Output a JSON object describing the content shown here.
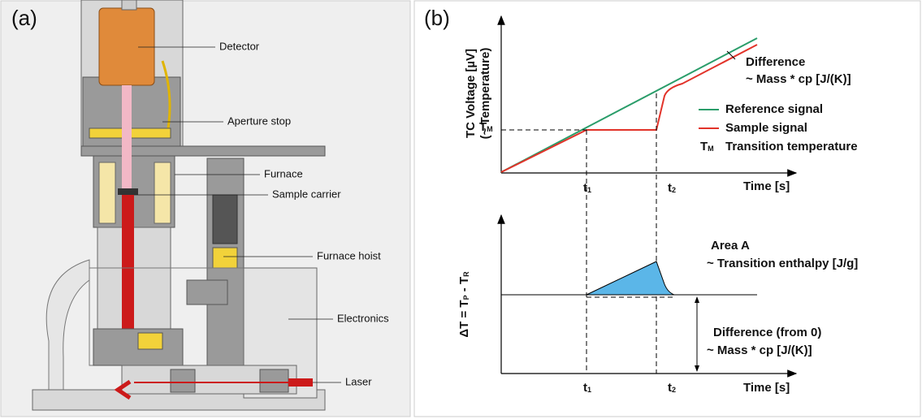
{
  "panel_a": {
    "label": "(a)",
    "callouts": [
      "Detector",
      "Aperture stop",
      "Furnace",
      "Sample carrier",
      "Furnace hoist",
      "Electronics",
      "Laser"
    ]
  },
  "panel_b": {
    "label": "(b)",
    "top_plot": {
      "y_axis_label": [
        "TC Voltage [µV]",
        "(~ Temperature)"
      ],
      "tm_label": {
        "base": "T",
        "sub": "M"
      },
      "difference": [
        "Difference",
        "~ Mass * cp [J/(K)]"
      ],
      "legend": [
        {
          "label": "Reference signal"
        },
        {
          "label": "Sample signal"
        },
        {
          "symbol": {
            "base": "T",
            "sub": "M"
          },
          "label": "Transition temperature"
        }
      ],
      "t1": {
        "base": "t",
        "sub": "1"
      },
      "t2": {
        "base": "t",
        "sub": "2"
      },
      "x_axis_label": "Time [s]"
    },
    "bottom_plot": {
      "y_axis_label": [
        {
          "text": "ΔT = T"
        },
        {
          "sub": "P"
        },
        {
          "text": " - T"
        },
        {
          "sub": "R"
        }
      ],
      "area": [
        "Area A",
        "~ Transition enthalpy [J/g]"
      ],
      "difference": [
        "Difference (from 0)",
        "~ Mass * cp [J/(K)]"
      ],
      "t1": {
        "base": "t",
        "sub": "1"
      },
      "t2": {
        "base": "t",
        "sub": "2"
      },
      "x_axis_label": "Time [s]"
    }
  }
}
